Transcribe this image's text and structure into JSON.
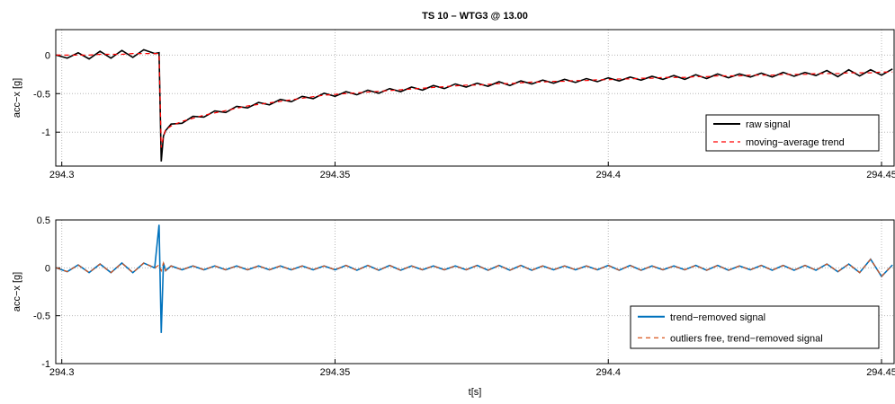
{
  "chart_data": [
    {
      "type": "line",
      "title": "TS 10 – WTG3 @ 13.00",
      "ylabel": "acc−x [g]",
      "x": [
        294.299,
        294.301,
        294.303,
        294.305,
        294.307,
        294.309,
        294.311,
        294.313,
        294.315,
        294.317,
        294.3178,
        294.3182,
        294.3186,
        294.319,
        294.32,
        294.322,
        294.324,
        294.326,
        294.328,
        294.33,
        294.332,
        294.334,
        294.336,
        294.338,
        294.34,
        294.342,
        294.344,
        294.346,
        294.348,
        294.35,
        294.352,
        294.354,
        294.356,
        294.358,
        294.36,
        294.362,
        294.364,
        294.366,
        294.368,
        294.37,
        294.372,
        294.374,
        294.376,
        294.378,
        294.38,
        294.382,
        294.384,
        294.386,
        294.388,
        294.39,
        294.392,
        294.394,
        294.396,
        294.398,
        294.4,
        294.402,
        294.404,
        294.406,
        294.408,
        294.41,
        294.412,
        294.414,
        294.416,
        294.418,
        294.42,
        294.422,
        294.424,
        294.426,
        294.428,
        294.43,
        294.432,
        294.434,
        294.436,
        294.438,
        294.44,
        294.442,
        294.444,
        294.446,
        294.448,
        294.45,
        294.452
      ],
      "series": [
        {
          "name": "raw signal",
          "color": "#000000",
          "style": "solid",
          "values": [
            0,
            -0.04,
            0.03,
            -0.05,
            0.05,
            -0.04,
            0.06,
            -0.03,
            0.07,
            0.02,
            0.03,
            -1.38,
            -1.05,
            -0.98,
            -0.895,
            -0.885,
            -0.795,
            -0.805,
            -0.725,
            -0.745,
            -0.665,
            -0.685,
            -0.615,
            -0.645,
            -0.575,
            -0.605,
            -0.535,
            -0.565,
            -0.495,
            -0.535,
            -0.475,
            -0.515,
            -0.455,
            -0.495,
            -0.435,
            -0.475,
            -0.415,
            -0.455,
            -0.395,
            -0.435,
            -0.375,
            -0.415,
            -0.365,
            -0.405,
            -0.345,
            -0.395,
            -0.335,
            -0.375,
            -0.325,
            -0.365,
            -0.315,
            -0.355,
            -0.305,
            -0.345,
            -0.295,
            -0.335,
            -0.285,
            -0.325,
            -0.275,
            -0.315,
            -0.265,
            -0.315,
            -0.255,
            -0.305,
            -0.245,
            -0.295,
            -0.245,
            -0.285,
            -0.235,
            -0.285,
            -0.225,
            -0.275,
            -0.225,
            -0.265,
            -0.2,
            -0.28,
            -0.19,
            -0.27,
            -0.19,
            -0.26,
            -0.18
          ]
        },
        {
          "name": "moving−average trend",
          "color": "#ff0000",
          "style": "dashed",
          "values": [
            0,
            0,
            0,
            0,
            0.01,
            0.01,
            0.01,
            0.02,
            0.02,
            0.02,
            0.02,
            -1.2,
            -1.05,
            -0.97,
            -0.92,
            -0.86,
            -0.82,
            -0.78,
            -0.75,
            -0.72,
            -0.69,
            -0.66,
            -0.64,
            -0.62,
            -0.6,
            -0.58,
            -0.56,
            -0.54,
            -0.52,
            -0.51,
            -0.5,
            -0.49,
            -0.48,
            -0.47,
            -0.46,
            -0.45,
            -0.44,
            -0.43,
            -0.42,
            -0.41,
            -0.4,
            -0.39,
            -0.39,
            -0.38,
            -0.37,
            -0.37,
            -0.36,
            -0.35,
            -0.35,
            -0.34,
            -0.34,
            -0.33,
            -0.33,
            -0.32,
            -0.32,
            -0.31,
            -0.31,
            -0.3,
            -0.3,
            -0.29,
            -0.29,
            -0.29,
            -0.28,
            -0.28,
            -0.27,
            -0.27,
            -0.27,
            -0.26,
            -0.26,
            -0.26,
            -0.25,
            -0.25,
            -0.25,
            -0.24,
            -0.24,
            -0.24,
            -0.23,
            -0.23,
            -0.23,
            -0.22,
            -0.22
          ]
        }
      ],
      "xlim": [
        294.2989,
        294.4523
      ],
      "ylim": [
        -1.44,
        0.33
      ],
      "xticks": [
        294.3,
        294.35,
        294.4,
        294.45
      ],
      "yticks": [
        -1,
        -0.5,
        0
      ],
      "grid": true,
      "legend": "lower right"
    },
    {
      "type": "line",
      "ylabel": "acc−x [g]",
      "xlabel": "t[s]",
      "x": [
        294.299,
        294.301,
        294.303,
        294.305,
        294.307,
        294.309,
        294.311,
        294.313,
        294.315,
        294.317,
        294.3178,
        294.3182,
        294.3186,
        294.319,
        294.32,
        294.322,
        294.324,
        294.326,
        294.328,
        294.33,
        294.332,
        294.334,
        294.336,
        294.338,
        294.34,
        294.342,
        294.344,
        294.346,
        294.348,
        294.35,
        294.352,
        294.354,
        294.356,
        294.358,
        294.36,
        294.362,
        294.364,
        294.366,
        294.368,
        294.37,
        294.372,
        294.374,
        294.376,
        294.378,
        294.38,
        294.382,
        294.384,
        294.386,
        294.388,
        294.39,
        294.392,
        294.394,
        294.396,
        294.398,
        294.4,
        294.402,
        294.404,
        294.406,
        294.408,
        294.41,
        294.412,
        294.414,
        294.416,
        294.418,
        294.42,
        294.422,
        294.424,
        294.426,
        294.428,
        294.43,
        294.432,
        294.434,
        294.436,
        294.438,
        294.44,
        294.442,
        294.444,
        294.446,
        294.448,
        294.45,
        294.452
      ],
      "series": [
        {
          "name": "trend−removed signal",
          "color": "#0072bd",
          "style": "solid",
          "values": [
            0,
            -0.04,
            0.03,
            -0.05,
            0.04,
            -0.05,
            0.05,
            -0.05,
            0.05,
            0,
            0.45,
            -0.68,
            0.05,
            -0.03,
            0.02,
            -0.02,
            0.02,
            -0.02,
            0.02,
            -0.02,
            0.02,
            -0.02,
            0.02,
            -0.02,
            0.02,
            -0.02,
            0.02,
            -0.02,
            0.02,
            -0.02,
            0.025,
            -0.025,
            0.025,
            -0.025,
            0.025,
            -0.025,
            0.02,
            -0.02,
            0.02,
            -0.02,
            0.02,
            -0.02,
            0.025,
            -0.025,
            0.025,
            -0.025,
            0.025,
            -0.025,
            0.02,
            -0.02,
            0.02,
            -0.02,
            0.02,
            -0.02,
            0.025,
            -0.025,
            0.025,
            -0.025,
            0.02,
            -0.02,
            0.02,
            -0.02,
            0.025,
            -0.025,
            0.025,
            -0.025,
            0.02,
            -0.02,
            0.025,
            -0.025,
            0.025,
            -0.025,
            0.025,
            -0.025,
            0.04,
            -0.04,
            0.04,
            -0.05,
            0.09,
            -0.09,
            0.03
          ]
        },
        {
          "name": "outliers free, trend−removed signal",
          "color": "#d95319",
          "style": "dashed",
          "values": [
            0,
            -0.04,
            0.03,
            -0.05,
            0.04,
            -0.05,
            0.05,
            -0.05,
            0.05,
            0,
            0.03,
            -0.03,
            0.05,
            -0.03,
            0.02,
            -0.02,
            0.02,
            -0.02,
            0.02,
            -0.02,
            0.02,
            -0.02,
            0.02,
            -0.02,
            0.02,
            -0.02,
            0.02,
            -0.02,
            0.02,
            -0.02,
            0.025,
            -0.025,
            0.025,
            -0.025,
            0.025,
            -0.025,
            0.02,
            -0.02,
            0.02,
            -0.02,
            0.02,
            -0.02,
            0.025,
            -0.025,
            0.025,
            -0.025,
            0.025,
            -0.025,
            0.02,
            -0.02,
            0.02,
            -0.02,
            0.02,
            -0.02,
            0.025,
            -0.025,
            0.025,
            -0.025,
            0.02,
            -0.02,
            0.02,
            -0.02,
            0.025,
            -0.025,
            0.025,
            -0.025,
            0.02,
            -0.02,
            0.025,
            -0.025,
            0.025,
            -0.025,
            0.025,
            -0.025,
            0.04,
            -0.04,
            0.04,
            -0.05,
            0.09,
            -0.09,
            0.03
          ]
        }
      ],
      "xlim": [
        294.2989,
        294.4523
      ],
      "ylim": [
        -1,
        0.5
      ],
      "xticks": [
        294.3,
        294.35,
        294.4,
        294.45
      ],
      "yticks": [
        -1,
        -0.5,
        0,
        0.5
      ],
      "grid": true,
      "legend": "lower right"
    }
  ]
}
